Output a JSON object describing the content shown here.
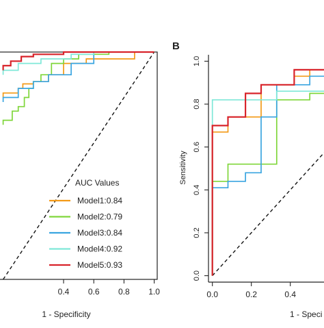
{
  "panel_b_label": "B",
  "legend_title": "AUC Values",
  "colors": {
    "model1": "#f39a17",
    "model2": "#7fd63a",
    "model3": "#3aa5e0",
    "model4": "#7fe8d8",
    "model5": "#d8232a",
    "axis": "#222222",
    "diagonal": "#111111"
  },
  "chart_data": [
    {
      "type": "line",
      "panel": "A",
      "title": "",
      "xlabel": "1 - Specificity",
      "ylabel": "",
      "xlim": [
        -0.03,
        1.02
      ],
      "ylim": [
        0.0,
        1.0
      ],
      "x_ticks": [
        "0.4",
        "0.6",
        "0.8",
        "1.0"
      ],
      "x_tick_values": [
        0.4,
        0.6,
        0.8,
        1.0
      ],
      "reference_line": [
        [
          0,
          0
        ],
        [
          1,
          1
        ]
      ],
      "legend_title": "AUC Values",
      "series": [
        {
          "name": "Model1:0.84",
          "color_key": "model1",
          "x": [
            0.0,
            0.0,
            0.1,
            0.1,
            0.13,
            0.13,
            0.2,
            0.2,
            0.3,
            0.3,
            0.4,
            0.4,
            0.55,
            0.55,
            0.87,
            0.87,
            1.0
          ],
          "y": [
            0.8,
            0.82,
            0.82,
            0.84,
            0.84,
            0.86,
            0.86,
            0.87,
            0.87,
            0.9,
            0.9,
            0.95,
            0.95,
            0.97,
            0.97,
            1.0,
            1.0
          ]
        },
        {
          "name": "Model2:0.79",
          "color_key": "model2",
          "x": [
            0.0,
            0.0,
            0.06,
            0.06,
            0.1,
            0.1,
            0.14,
            0.14,
            0.17,
            0.17,
            0.2,
            0.2,
            0.25,
            0.25,
            0.32,
            0.32,
            0.4,
            0.4,
            0.5,
            0.5,
            0.7,
            0.7,
            1.0
          ],
          "y": [
            0.68,
            0.7,
            0.7,
            0.74,
            0.74,
            0.76,
            0.76,
            0.8,
            0.8,
            0.84,
            0.84,
            0.87,
            0.87,
            0.9,
            0.9,
            0.95,
            0.95,
            0.97,
            0.97,
            0.99,
            0.99,
            1.0,
            1.0
          ]
        },
        {
          "name": "Model3:0.84",
          "color_key": "model3",
          "x": [
            0.0,
            0.0,
            0.1,
            0.1,
            0.2,
            0.2,
            0.3,
            0.3,
            0.45,
            0.45,
            0.6,
            0.6,
            1.0
          ],
          "y": [
            0.78,
            0.8,
            0.8,
            0.84,
            0.84,
            0.87,
            0.87,
            0.9,
            0.9,
            0.95,
            0.95,
            1.0,
            1.0
          ]
        },
        {
          "name": "Model4:0.92",
          "color_key": "model4",
          "x": [
            0.0,
            0.0,
            0.1,
            0.1,
            0.25,
            0.25,
            0.45,
            0.45,
            0.6,
            0.6,
            1.0
          ],
          "y": [
            0.9,
            0.92,
            0.92,
            0.95,
            0.95,
            0.97,
            0.97,
            0.99,
            0.99,
            1.0,
            1.0
          ]
        },
        {
          "name": "Model5:0.93",
          "color_key": "model5",
          "x": [
            0.0,
            0.0,
            0.05,
            0.05,
            0.12,
            0.12,
            0.2,
            0.2,
            0.4,
            0.4,
            1.0
          ],
          "y": [
            0.92,
            0.94,
            0.94,
            0.96,
            0.96,
            0.98,
            0.98,
            0.99,
            0.99,
            1.0,
            1.0
          ]
        }
      ]
    },
    {
      "type": "line",
      "panel": "B",
      "title": "",
      "xlabel": "1 - Speci",
      "ylabel": "Sensitivity",
      "xlim": [
        -0.02,
        0.58
      ],
      "ylim": [
        -0.03,
        1.03
      ],
      "x_ticks": [
        "0.0",
        "0.2",
        "0.4"
      ],
      "x_tick_values": [
        0.0,
        0.2,
        0.4
      ],
      "y_ticks": [
        "0.0",
        "0.2",
        "0.4",
        "0.6",
        "0.8",
        "1.0"
      ],
      "y_tick_values": [
        0.0,
        0.2,
        0.4,
        0.6,
        0.8,
        1.0
      ],
      "reference_line": [
        [
          0,
          0
        ],
        [
          1,
          1
        ]
      ],
      "series": [
        {
          "name": "Model1",
          "color_key": "model1",
          "x": [
            0.0,
            0.0,
            0.08,
            0.08,
            0.25,
            0.25,
            0.42,
            0.42,
            0.5,
            0.5,
            0.6
          ],
          "y": [
            0.0,
            0.67,
            0.67,
            0.74,
            0.74,
            0.89,
            0.89,
            0.93,
            0.93,
            0.96,
            0.96
          ]
        },
        {
          "name": "Model2",
          "color_key": "model2",
          "x": [
            0.0,
            0.0,
            0.08,
            0.08,
            0.33,
            0.33,
            0.5,
            0.5,
            0.6
          ],
          "y": [
            0.0,
            0.44,
            0.44,
            0.52,
            0.52,
            0.82,
            0.82,
            0.85,
            0.85
          ]
        },
        {
          "name": "Model3",
          "color_key": "model3",
          "x": [
            0.0,
            0.0,
            0.08,
            0.08,
            0.17,
            0.17,
            0.25,
            0.25,
            0.33,
            0.33,
            0.5,
            0.5,
            0.6
          ],
          "y": [
            0.0,
            0.41,
            0.41,
            0.44,
            0.44,
            0.48,
            0.48,
            0.74,
            0.74,
            0.89,
            0.89,
            0.93,
            0.93
          ]
        },
        {
          "name": "Model4",
          "color_key": "model4",
          "x": [
            0.0,
            0.0,
            0.33,
            0.33,
            0.6
          ],
          "y": [
            0.0,
            0.82,
            0.82,
            0.86,
            0.86
          ]
        },
        {
          "name": "Model5",
          "color_key": "model5",
          "x": [
            0.0,
            0.0,
            0.08,
            0.08,
            0.17,
            0.17,
            0.25,
            0.25,
            0.42,
            0.42,
            0.6
          ],
          "y": [
            0.0,
            0.7,
            0.7,
            0.74,
            0.74,
            0.85,
            0.85,
            0.89,
            0.89,
            0.96,
            0.96
          ]
        }
      ]
    }
  ]
}
